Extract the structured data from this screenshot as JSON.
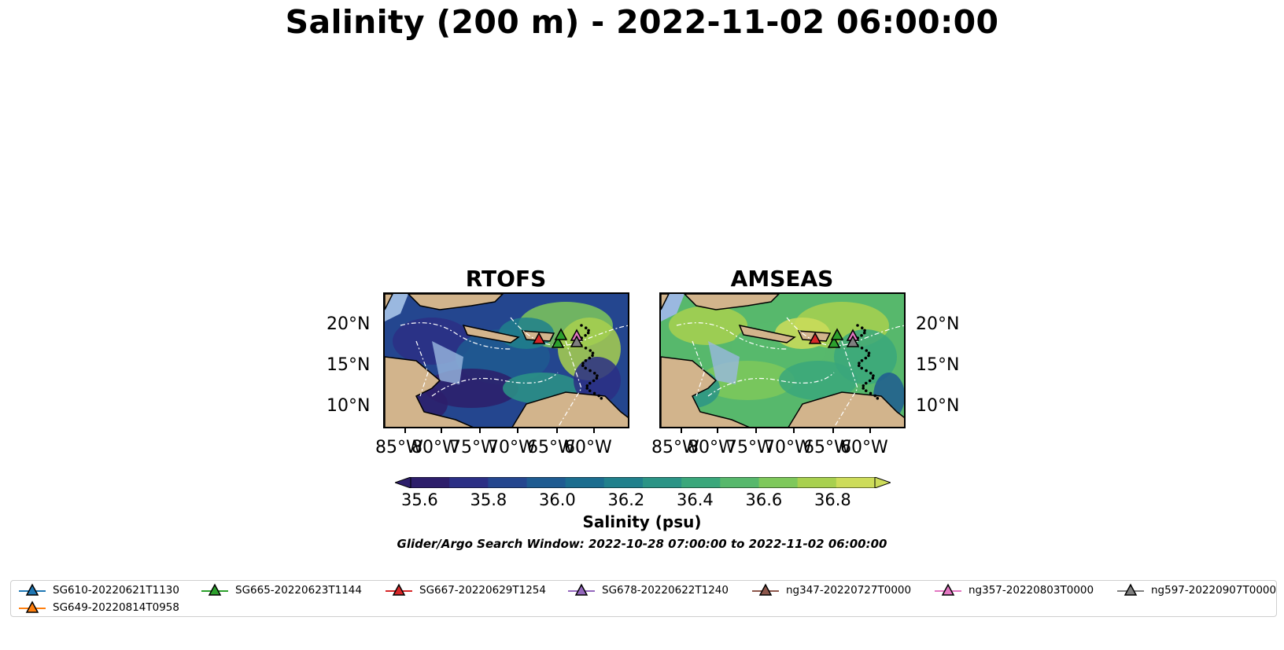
{
  "title": "Salinity (200 m) - 2022-11-02 06:00:00",
  "panels": [
    {
      "name": "RTOFS",
      "palette_bias": "fresh"
    },
    {
      "name": "AMSEAS",
      "palette_bias": "salty"
    }
  ],
  "lat_labels": [
    "20°N",
    "15°N",
    "10°N"
  ],
  "lon_labels": [
    "85°W",
    "80°W",
    "75°W",
    "70°W",
    "65°W",
    "60°W"
  ],
  "colorbar": {
    "ticks": [
      "35.6",
      "35.8",
      "36.0",
      "36.2",
      "36.4",
      "36.6",
      "36.8"
    ],
    "title": "Salinity (psu)",
    "colors": [
      "#2d1e6b",
      "#2b2f85",
      "#24468f",
      "#1e5b91",
      "#1b6d8f",
      "#20808c",
      "#2b9486",
      "#3aa77b",
      "#57b86c",
      "#7ec85b",
      "#a8d04f",
      "#cddc5a"
    ]
  },
  "search_window": "Glider/Argo Search Window: 2022-10-28 07:00:00 to 2022-11-02 06:00:00",
  "legend": [
    {
      "label": "SG610-20220621T1130",
      "color": "#1f77b4"
    },
    {
      "label": "SG665-20220623T1144",
      "color": "#2ca02c"
    },
    {
      "label": "SG667-20220629T1254",
      "color": "#d62728"
    },
    {
      "label": "SG678-20220622T1240",
      "color": "#9467bd"
    },
    {
      "label": "ng347-20220727T0000",
      "color": "#8c564b"
    },
    {
      "label": "ng357-20220803T0000",
      "color": "#e377c2"
    },
    {
      "label": "ng597-20220907T0000",
      "color": "#7f7f7f"
    },
    {
      "label": "SG649-20220814T0958",
      "color": "#ff7f0e"
    }
  ],
  "land_color": "#d2b48c",
  "shelf_color": "#9ab8e0"
}
